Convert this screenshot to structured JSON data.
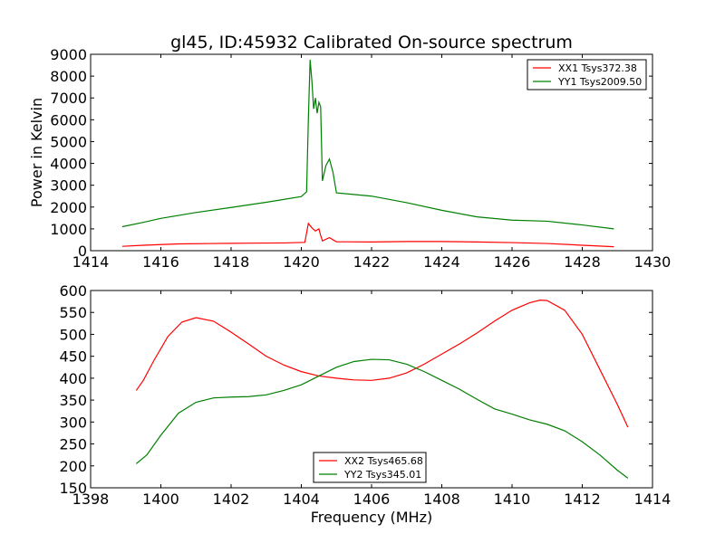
{
  "chart_data": [
    {
      "type": "line",
      "title": "gl45, ID:45932 Calibrated On-source spectrum",
      "xlabel": "",
      "ylabel": "Power in Kelvin",
      "xlim": [
        1414,
        1430
      ],
      "ylim": [
        0,
        9000
      ],
      "xticks": [
        "1414",
        "1416",
        "1418",
        "1420",
        "1422",
        "1424",
        "1426",
        "1428",
        "1430"
      ],
      "yticks": [
        "0",
        "1000",
        "2000",
        "3000",
        "4000",
        "5000",
        "6000",
        "7000",
        "8000",
        "9000"
      ],
      "grid": false,
      "legend_position": "top-right",
      "series": [
        {
          "name": "XX1 Tsys372.38",
          "color": "#ff0000",
          "points": [
            [
              1414.9,
              200
            ],
            [
              1415.5,
              250
            ],
            [
              1416.5,
              310
            ],
            [
              1417.5,
              330
            ],
            [
              1418.5,
              345
            ],
            [
              1419.5,
              355
            ],
            [
              1420.1,
              380
            ],
            [
              1420.2,
              1250
            ],
            [
              1420.3,
              1050
            ],
            [
              1420.4,
              900
            ],
            [
              1420.5,
              1000
            ],
            [
              1420.55,
              700
            ],
            [
              1420.6,
              450
            ],
            [
              1420.8,
              600
            ],
            [
              1420.9,
              500
            ],
            [
              1421.0,
              410
            ],
            [
              1422,
              400
            ],
            [
              1423,
              420
            ],
            [
              1424,
              420
            ],
            [
              1425,
              400
            ],
            [
              1426,
              370
            ],
            [
              1427,
              330
            ],
            [
              1428,
              250
            ],
            [
              1428.9,
              180
            ]
          ]
        },
        {
          "name": "YY1 Tsys2009.50",
          "color": "#008000",
          "points": [
            [
              1414.9,
              1100
            ],
            [
              1415.5,
              1300
            ],
            [
              1416,
              1480
            ],
            [
              1417,
              1750
            ],
            [
              1418,
              1980
            ],
            [
              1419,
              2220
            ],
            [
              1420,
              2480
            ],
            [
              1420.15,
              2700
            ],
            [
              1420.2,
              6000
            ],
            [
              1420.25,
              8750
            ],
            [
              1420.3,
              7800
            ],
            [
              1420.35,
              6500
            ],
            [
              1420.4,
              7000
            ],
            [
              1420.45,
              6300
            ],
            [
              1420.5,
              6800
            ],
            [
              1420.55,
              6600
            ],
            [
              1420.6,
              3200
            ],
            [
              1420.7,
              3900
            ],
            [
              1420.8,
              4200
            ],
            [
              1420.9,
              3600
            ],
            [
              1421.0,
              2650
            ],
            [
              1422,
              2500
            ],
            [
              1423,
              2200
            ],
            [
              1424,
              1850
            ],
            [
              1425,
              1550
            ],
            [
              1426,
              1400
            ],
            [
              1427,
              1350
            ],
            [
              1428,
              1180
            ],
            [
              1428.9,
              1000
            ]
          ]
        }
      ]
    },
    {
      "type": "line",
      "title": "",
      "xlabel": "Frequency (MHz)",
      "ylabel": "",
      "xlim": [
        1398,
        1414
      ],
      "ylim": [
        150,
        600
      ],
      "xticks": [
        "1398",
        "1400",
        "1402",
        "1404",
        "1406",
        "1408",
        "1410",
        "1412",
        "1414"
      ],
      "yticks": [
        "150",
        "200",
        "250",
        "300",
        "350",
        "400",
        "450",
        "500",
        "550",
        "600"
      ],
      "grid": false,
      "legend_position": "bottom-center",
      "series": [
        {
          "name": "XX2 Tsys465.68",
          "color": "#ff0000",
          "points": [
            [
              1399.3,
              372
            ],
            [
              1399.5,
              395
            ],
            [
              1399.8,
              440
            ],
            [
              1400.2,
              495
            ],
            [
              1400.6,
              528
            ],
            [
              1401,
              538
            ],
            [
              1401.5,
              530
            ],
            [
              1402,
              505
            ],
            [
              1402.5,
              478
            ],
            [
              1403,
              450
            ],
            [
              1403.5,
              430
            ],
            [
              1404,
              415
            ],
            [
              1404.5,
              405
            ],
            [
              1405,
              400
            ],
            [
              1405.5,
              396
            ],
            [
              1406,
              395
            ],
            [
              1406.5,
              400
            ],
            [
              1407,
              412
            ],
            [
              1407.5,
              432
            ],
            [
              1408,
              455
            ],
            [
              1408.5,
              478
            ],
            [
              1409,
              503
            ],
            [
              1409.5,
              530
            ],
            [
              1410,
              555
            ],
            [
              1410.5,
              572
            ],
            [
              1410.8,
              578
            ],
            [
              1411,
              577
            ],
            [
              1411.5,
              555
            ],
            [
              1412,
              500
            ],
            [
              1412.5,
              420
            ],
            [
              1413,
              340
            ],
            [
              1413.3,
              288
            ]
          ]
        },
        {
          "name": "YY2 Tsys345.01",
          "color": "#008000",
          "points": [
            [
              1399.3,
              205
            ],
            [
              1399.6,
              225
            ],
            [
              1400,
              270
            ],
            [
              1400.5,
              320
            ],
            [
              1401,
              345
            ],
            [
              1401.5,
              355
            ],
            [
              1402,
              357
            ],
            [
              1402.5,
              358
            ],
            [
              1403,
              362
            ],
            [
              1403.5,
              372
            ],
            [
              1404,
              385
            ],
            [
              1404.5,
              405
            ],
            [
              1405,
              425
            ],
            [
              1405.5,
              438
            ],
            [
              1406,
              443
            ],
            [
              1406.5,
              442
            ],
            [
              1407,
              432
            ],
            [
              1407.5,
              415
            ],
            [
              1408,
              395
            ],
            [
              1408.5,
              375
            ],
            [
              1409,
              352
            ],
            [
              1409.5,
              330
            ],
            [
              1410,
              318
            ],
            [
              1410.5,
              305
            ],
            [
              1411,
              295
            ],
            [
              1411.5,
              280
            ],
            [
              1412,
              255
            ],
            [
              1412.5,
              225
            ],
            [
              1413,
              190
            ],
            [
              1413.3,
              172
            ]
          ]
        }
      ]
    }
  ]
}
